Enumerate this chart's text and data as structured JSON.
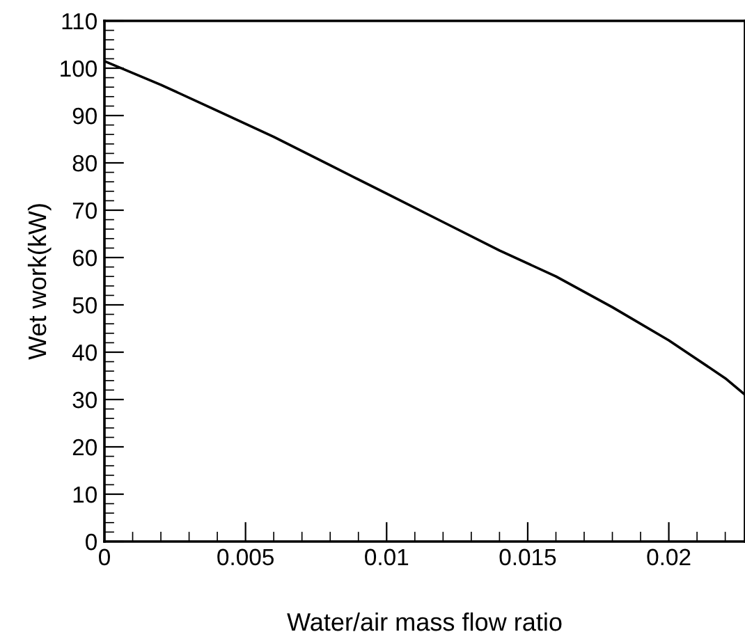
{
  "chart_data": {
    "type": "line",
    "xlabel": "Water/air mass flow ratio",
    "ylabel": "Wet work(kW)",
    "x": [
      0,
      0.002,
      0.004,
      0.006,
      0.008,
      0.01,
      0.012,
      0.014,
      0.016,
      0.018,
      0.02,
      0.022,
      0.0227
    ],
    "series": [
      {
        "color": "#000000",
        "values": [
          101.5,
          96.5,
          91,
          85.5,
          79.5,
          73.5,
          67.5,
          61.5,
          56,
          49.5,
          42.5,
          34.5,
          31
        ]
      }
    ],
    "xlim": [
      0,
      0.0227
    ],
    "ylim": [
      0,
      110
    ],
    "xticks": [
      0,
      0.005,
      0.01,
      0.015,
      0.02
    ],
    "yticks": [
      0,
      10,
      20,
      30,
      40,
      50,
      60,
      70,
      80,
      90,
      100,
      110
    ],
    "grid": false,
    "legend": false,
    "marker": "none",
    "line_style": "solid"
  }
}
